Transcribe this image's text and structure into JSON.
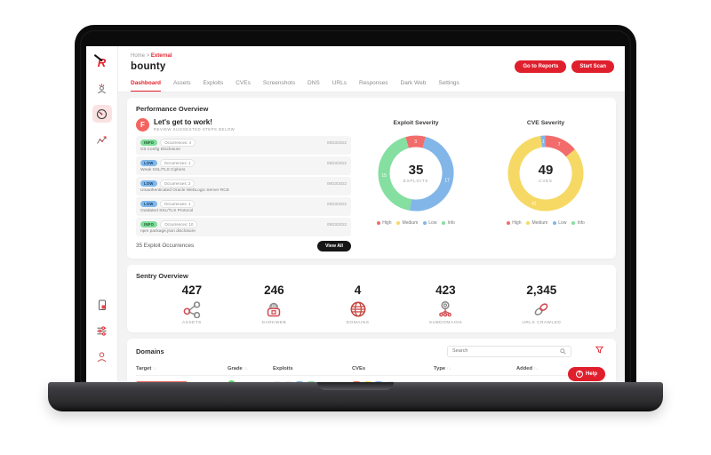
{
  "breadcrumb": {
    "home": "Home",
    "separator": ">",
    "current": "External"
  },
  "page": {
    "title": "bounty"
  },
  "header_buttons": {
    "reports": "Go to Reports",
    "start_scan": "Start Scan"
  },
  "tabs": [
    "Dashboard",
    "Assets",
    "Exploits",
    "CVEs",
    "Screenshots",
    "DNS",
    "URLs",
    "Responses",
    "Dark Web",
    "Settings"
  ],
  "performance": {
    "title": "Performance Overview",
    "cta": {
      "avatar_initial": "F",
      "heading": "Let's get to work!",
      "subheading": "REVIEW SUGGESTED STEPS BELOW"
    },
    "items": [
      {
        "severity": "INFO",
        "severity_bg": "#7fdd98",
        "severity_fg": "#19512e",
        "occurrences": "Occurrences: 4",
        "name": "Git Config Disclosure",
        "date": "09/23/2022"
      },
      {
        "severity": "LOW",
        "severity_bg": "#82b9ea",
        "severity_fg": "#123f6b",
        "occurrences": "Occurrences: 1",
        "name": "Weak SSL/TLS Ciphers",
        "date": "09/23/2022"
      },
      {
        "severity": "LOW",
        "severity_bg": "#82b9ea",
        "severity_fg": "#123f6b",
        "occurrences": "Occurrences: 2",
        "name": "Unauthenticated Oracle WebLogic Server RCE",
        "date": "09/23/2022"
      },
      {
        "severity": "LOW",
        "severity_bg": "#82b9ea",
        "severity_fg": "#123f6b",
        "occurrences": "Occurrences: 1",
        "name": "Outdated SSL/TLS Protocol",
        "date": "09/23/2022"
      },
      {
        "severity": "INFO",
        "severity_bg": "#7fdd98",
        "severity_fg": "#19512e",
        "occurrences": "Occurrences: 10",
        "name": "npm package.json disclosure",
        "date": "09/23/2022"
      }
    ],
    "footer": {
      "summary": "35 Exploit Occurrences",
      "view_all": "View All"
    }
  },
  "chart_data": [
    {
      "type": "donut",
      "title": "Exploit Severity",
      "center_value": "35",
      "center_label": "EXPLOITS",
      "start_angle": -16,
      "segments": [
        {
          "name": "High",
          "value": 3,
          "color": "#f26c6c"
        },
        {
          "name": "Low",
          "value": 17,
          "color": "#82b6e8"
        },
        {
          "name": "Info",
          "value": 15,
          "color": "#84dfa0"
        }
      ],
      "legend": [
        {
          "name": "High",
          "color": "#f26c6c"
        },
        {
          "name": "Medium",
          "color": "#f6d964"
        },
        {
          "name": "Low",
          "color": "#82b6e8"
        },
        {
          "name": "Info",
          "color": "#84dfa0"
        }
      ]
    },
    {
      "type": "donut",
      "title": "CVE Severity",
      "center_value": "49",
      "center_label": "CVES",
      "start_angle": -8,
      "segments": [
        {
          "name": "Low",
          "value": 1,
          "color": "#82b6e8"
        },
        {
          "name": "High",
          "value": 7,
          "color": "#f26c6c"
        },
        {
          "name": "Medium",
          "value": 41,
          "color": "#f6d964"
        }
      ],
      "legend": [
        {
          "name": "High",
          "color": "#f26c6c"
        },
        {
          "name": "Medium",
          "color": "#f6d964"
        },
        {
          "name": "Low",
          "color": "#82b6e8"
        },
        {
          "name": "Info",
          "color": "#84dfa0"
        }
      ]
    }
  ],
  "sentry": {
    "title": "Sentry Overview",
    "stats": [
      {
        "value": "427",
        "label": "ASSETS"
      },
      {
        "value": "246",
        "label": "DARKWEB"
      },
      {
        "value": "4",
        "label": "DOMAINS"
      },
      {
        "value": "423",
        "label": "SUBDOMAINS"
      },
      {
        "value": "2,345",
        "label": "URLS CRAWLED"
      }
    ]
  },
  "domains": {
    "title": "Domains",
    "search_placeholder": "Search",
    "sort_glyph": "↑↓",
    "columns": [
      {
        "label": "Target"
      },
      {
        "label": "Grade"
      },
      {
        "label": "Exploits"
      },
      {
        "label": "CVEs"
      },
      {
        "label": "Type"
      },
      {
        "label": "Added"
      }
    ],
    "row": {
      "target_color": "#e2574f",
      "grade_color": "#4ed964",
      "exploit_pills": [
        "#e3e3e3",
        "#e3e3e3",
        "#82b6e8",
        "#84dfa0"
      ],
      "cve_pills": [
        "#f26c6c",
        "#f6d964",
        "#82b6e8",
        "#e3e3e3"
      ]
    }
  },
  "help": {
    "label": "Help",
    "q": "?"
  },
  "colors": {
    "accent": "#e01f2d"
  }
}
